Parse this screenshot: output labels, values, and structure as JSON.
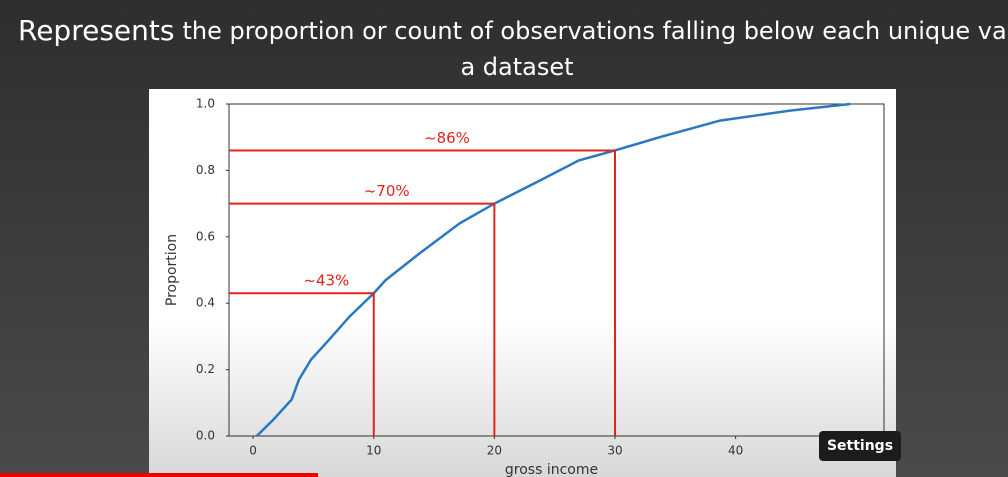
{
  "slide": {
    "title_lead": "Represents",
    "title_line1": "the proportion or count of observations falling below each unique value in",
    "title_line2": "a dataset"
  },
  "chart_data": {
    "type": "line",
    "xlabel": "gross income",
    "ylabel": "Proportion",
    "series": [
      {
        "color": "#2a78c0",
        "x": [
          0.3,
          1.7,
          3.2,
          3.8,
          4.8,
          6.3,
          8,
          10,
          11,
          13.8,
          17.1,
          20,
          23.8,
          27,
          30,
          33.7,
          38.7,
          44.5,
          49.5
        ],
        "values": [
          0,
          0.05,
          0.11,
          0.17,
          0.23,
          0.29,
          0.36,
          0.43,
          0.47,
          0.55,
          0.64,
          0.7,
          0.77,
          0.83,
          0.86,
          0.9,
          0.95,
          0.98,
          1.0
        ]
      }
    ],
    "xlim": [
      -2,
      52.3
    ],
    "ylim": [
      0,
      1
    ],
    "xticks": [
      0,
      10,
      20,
      30,
      40
    ],
    "yticks": [
      {
        "value": 0,
        "label": "0.0"
      },
      0.2,
      0.4,
      0.6,
      0.8,
      {
        "value": 1,
        "label": "1.0"
      }
    ],
    "annotations": [
      {
        "x": 10,
        "y": 0.43,
        "label": "~43%"
      },
      {
        "x": 20,
        "y": 0.7,
        "label": "~70%"
      },
      {
        "x": 30,
        "y": 0.86,
        "label": "~86%"
      }
    ],
    "annotation_color": "#e0241b"
  },
  "player": {
    "tooltip": "Settings"
  }
}
